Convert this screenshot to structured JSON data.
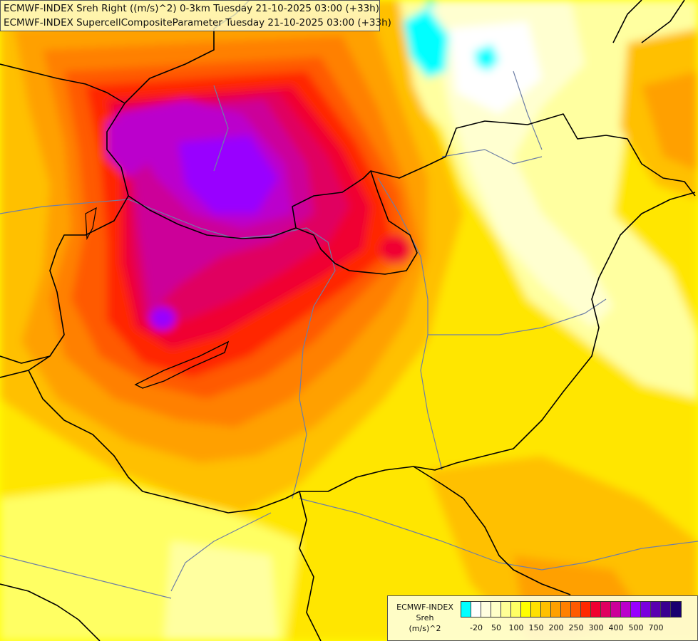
{
  "header": {
    "line1": "ECMWF-INDEX Sreh Right ((m/s)^2) 0-3km Tuesday 21-10-2025 03:00 (+33h)",
    "line2": "ECMWF-INDEX SupercellCompositeParameter Tuesday 21-10-2025 03:00 (+33h)"
  },
  "legend": {
    "title": [
      "ECMWF-INDEX",
      "Sreh",
      "(m/s)^2"
    ],
    "colors": [
      "#00ffff",
      "#ffffff",
      "#fffde0",
      "#ffffc8",
      "#ffff96",
      "#ffff64",
      "#ffff00",
      "#ffe000",
      "#ffc000",
      "#ffa000",
      "#ff8000",
      "#ff5a00",
      "#ff2800",
      "#f00030",
      "#e00060",
      "#cc0099",
      "#bb00cc",
      "#9900ff",
      "#7a00dd",
      "#5a00b0",
      "#3a0090",
      "#1a0070"
    ],
    "tick_labels": [
      "-20",
      "50",
      "100",
      "150",
      "200",
      "250",
      "300",
      "400",
      "500",
      "700"
    ],
    "tick_positions": [
      1,
      3,
      5,
      7,
      9,
      11,
      13,
      15,
      17,
      19
    ]
  },
  "colors": {
    "borders": "#000000",
    "rivers": "#6e7fa5",
    "background_field": "#ffff00"
  }
}
